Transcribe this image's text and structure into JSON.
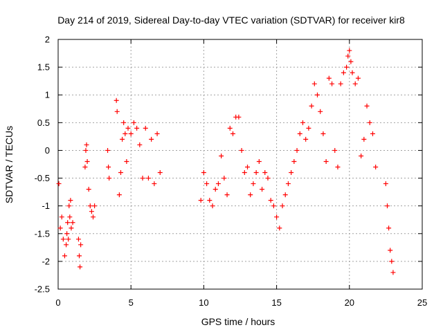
{
  "chart_data": {
    "type": "scatter",
    "title": "Day 214 of 2019, Sidereal Day-to-day VTEC variation (SDTVAR) for receiver kir8",
    "xlabel": "GPS time / hours",
    "ylabel": "SDTVAR / TECUs",
    "xlim": [
      0,
      25
    ],
    "ylim": [
      -2.5,
      2
    ],
    "xticks": [
      "0",
      "5",
      "10",
      "15",
      "20",
      "25"
    ],
    "yticks": [
      "2",
      "1.5",
      "1",
      "0.5",
      "0",
      "-0.5",
      "-1",
      "-1.5",
      "-2",
      "-2.5"
    ],
    "grid": true,
    "marker": "+",
    "series_color": "#ff0000",
    "series": [
      {
        "name": "SDTVAR",
        "x": [
          0.05,
          0.15,
          0.25,
          0.35,
          0.45,
          0.55,
          0.6,
          0.65,
          0.7,
          0.75,
          0.8,
          0.85,
          0.9,
          1.0,
          1.4,
          1.45,
          1.5,
          1.55,
          1.85,
          1.9,
          1.95,
          2.0,
          2.1,
          2.2,
          2.3,
          2.4,
          2.5,
          3.4,
          3.45,
          3.5,
          4.0,
          4.05,
          4.2,
          4.3,
          4.4,
          4.5,
          4.6,
          4.7,
          4.8,
          5.0,
          5.2,
          5.4,
          5.6,
          5.8,
          6.0,
          6.2,
          6.4,
          6.6,
          6.8,
          7.0,
          9.8,
          10.0,
          10.2,
          10.4,
          10.6,
          10.8,
          11.0,
          11.2,
          11.4,
          11.6,
          11.8,
          12.0,
          12.2,
          12.4,
          12.6,
          12.8,
          13.0,
          13.2,
          13.4,
          13.6,
          13.8,
          14.0,
          14.2,
          14.4,
          14.6,
          14.8,
          15.0,
          15.2,
          15.4,
          15.6,
          15.8,
          16.0,
          16.2,
          16.4,
          16.6,
          16.8,
          17.0,
          17.2,
          17.4,
          17.6,
          17.8,
          18.0,
          18.2,
          18.4,
          18.6,
          18.8,
          19.0,
          19.2,
          19.4,
          19.6,
          19.8,
          19.9,
          20.0,
          20.1,
          20.2,
          20.4,
          20.6,
          20.8,
          21.0,
          21.2,
          21.4,
          21.6,
          21.8,
          22.5,
          22.6,
          22.7,
          22.8,
          22.9,
          23.0
        ],
        "y": [
          -0.6,
          -1.4,
          -1.2,
          -1.6,
          -1.9,
          -1.7,
          -1.5,
          -1.3,
          -1.6,
          -1.0,
          -1.2,
          -0.9,
          -1.4,
          -1.3,
          -1.6,
          -1.9,
          -2.1,
          -1.7,
          -0.3,
          0.0,
          0.1,
          -0.2,
          -0.7,
          -1.0,
          -1.1,
          -1.2,
          -1.0,
          0.0,
          -0.3,
          -0.5,
          0.9,
          0.7,
          -0.8,
          -0.4,
          0.2,
          0.5,
          0.3,
          -0.2,
          0.4,
          0.3,
          0.5,
          0.4,
          0.1,
          -0.5,
          0.4,
          -0.5,
          0.2,
          -0.6,
          0.3,
          -0.4,
          -0.9,
          -0.4,
          -0.6,
          -0.9,
          -1.0,
          -0.7,
          -0.6,
          -0.1,
          -0.5,
          -0.8,
          0.4,
          0.3,
          0.6,
          0.6,
          0.0,
          -0.4,
          -0.3,
          -0.8,
          -0.6,
          -0.4,
          -0.2,
          -0.7,
          -0.4,
          -0.5,
          -0.9,
          -1.0,
          -1.2,
          -1.4,
          -1.0,
          -0.8,
          -0.6,
          -0.4,
          -0.2,
          0.0,
          0.3,
          0.5,
          0.2,
          0.4,
          0.8,
          1.2,
          1.0,
          0.7,
          0.3,
          -0.2,
          1.3,
          1.2,
          0.0,
          -0.3,
          1.2,
          1.4,
          1.5,
          1.7,
          1.8,
          1.6,
          1.4,
          1.2,
          1.3,
          -0.1,
          0.2,
          0.8,
          0.5,
          0.3,
          -0.3,
          -0.6,
          -1.0,
          -1.4,
          -1.8,
          -2.0,
          -2.2
        ]
      }
    ]
  }
}
